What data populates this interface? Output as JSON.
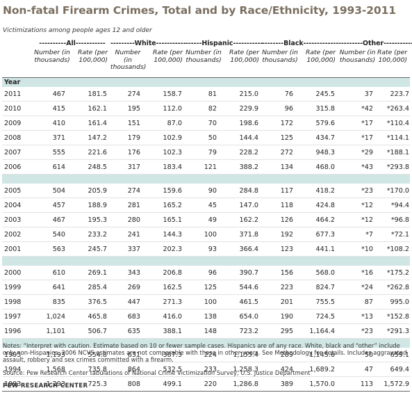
{
  "title": "Non-fatal Firearm Crimes, Total and by Race/Ethnicity, 1993-2011",
  "subtitle": "Victimizations among people ages 12 and older",
  "groups": [
    "----------All-----------",
    "---------White-----------",
    "------Hispanic-----------",
    "--------Black-------------",
    "---------Other-----------"
  ],
  "col_labels": {
    "number": "Number (in thousands)",
    "rate": "Rate (per 100,000)"
  },
  "year_header": "Year",
  "blocks": [
    [
      [
        "2011",
        "467",
        "181.5",
        "274",
        "158.7",
        "81",
        "215.0",
        "76",
        "245.5",
        "37",
        "223.7"
      ],
      [
        "2010",
        "415",
        "162.1",
        "195",
        "112.0",
        "82",
        "229.9",
        "96",
        "315.8",
        "*42",
        "*263.4"
      ],
      [
        "2009",
        "410",
        "161.4",
        "151",
        "87.0",
        "70",
        "198.6",
        "172",
        "579.6",
        "*17",
        "*110.4"
      ],
      [
        "2008",
        "371",
        "147.2",
        "179",
        "102.9",
        "50",
        "144.4",
        "125",
        "434.7",
        "*17",
        "*114.1"
      ],
      [
        "2007",
        "555",
        "221.6",
        "176",
        "102.3",
        "79",
        "228.2",
        "272",
        "948.3",
        "*29",
        "*188.1"
      ],
      [
        "2006",
        "614",
        "248.5",
        "317",
        "183.4",
        "121",
        "388.2",
        "134",
        "468.0",
        "*43",
        "*293.8"
      ]
    ],
    [
      [
        "2005",
        "504",
        "205.9",
        "274",
        "159.6",
        "90",
        "284.8",
        "117",
        "418.2",
        "*23",
        "*170.0"
      ],
      [
        "2004",
        "457",
        "188.9",
        "281",
        "165.2",
        "45",
        "147.0",
        "118",
        "424.8",
        "*12",
        "*94.4"
      ],
      [
        "2003",
        "467",
        "195.3",
        "280",
        "165.1",
        "49",
        "162.2",
        "126",
        "464.2",
        "*12",
        "*96.8"
      ],
      [
        "2002",
        "540",
        "233.2",
        "241",
        "144.3",
        "100",
        "371.8",
        "192",
        "677.3",
        "*7",
        "*72.1"
      ],
      [
        "2001",
        "563",
        "245.7",
        "337",
        "202.3",
        "93",
        "366.4",
        "123",
        "441.1",
        "*10",
        "*108.2"
      ]
    ],
    [
      [
        "2000",
        "610",
        "269.1",
        "343",
        "206.8",
        "96",
        "390.7",
        "156",
        "568.0",
        "*16",
        "*175.2"
      ],
      [
        "1999",
        "641",
        "285.4",
        "269",
        "162.5",
        "125",
        "544.6",
        "223",
        "824.7",
        "*24",
        "*262.8"
      ],
      [
        "1998",
        "835",
        "376.5",
        "447",
        "271.3",
        "100",
        "461.5",
        "201",
        "755.5",
        "87",
        "995.0"
      ],
      [
        "1997",
        "1,024",
        "465.8",
        "683",
        "416.0",
        "138",
        "654.0",
        "190",
        "724.5",
        "*13",
        "*152.8"
      ],
      [
        "1996",
        "1,101",
        "506.7",
        "635",
        "388.1",
        "148",
        "723.2",
        "295",
        "1,164.4",
        "*23",
        "*291.3"
      ]
    ],
    [
      [
        "1995",
        "1,193",
        "554.8",
        "631",
        "387.3",
        "224",
        "1,155.4",
        "289",
        "1,145.6",
        "50",
        "659.1"
      ],
      [
        "1994",
        "1,568",
        "735.8",
        "864",
        "532.5",
        "233",
        "1,258.3",
        "424",
        "1,689.2",
        "47",
        "649.4"
      ],
      [
        "1993",
        "1,293",
        "725.3",
        "808",
        "499.1",
        "220",
        "1,286.8",
        "389",
        "1,570.0",
        "113",
        "1,572.9"
      ]
    ]
  ],
  "notes": "Notes: “Interpret with caution. Estimate based on 10 or fewer sample cases. Hispanics are of any race. White, black and “other” include only non-Hispanics. 2006 NCVS estimates are not comparable with those in other years. See Methodology for details. Includes aggravated assault, robbery and sex crimes committed with a firearm.",
  "source": "Source: Pew Research Center tabulations of National Crime Victimization Survey, U.S. Justice Department",
  "brand": "PEW RESEARCH CENTER",
  "colors": {
    "title": "#7a6f60",
    "band": "#cfe6e4"
  }
}
